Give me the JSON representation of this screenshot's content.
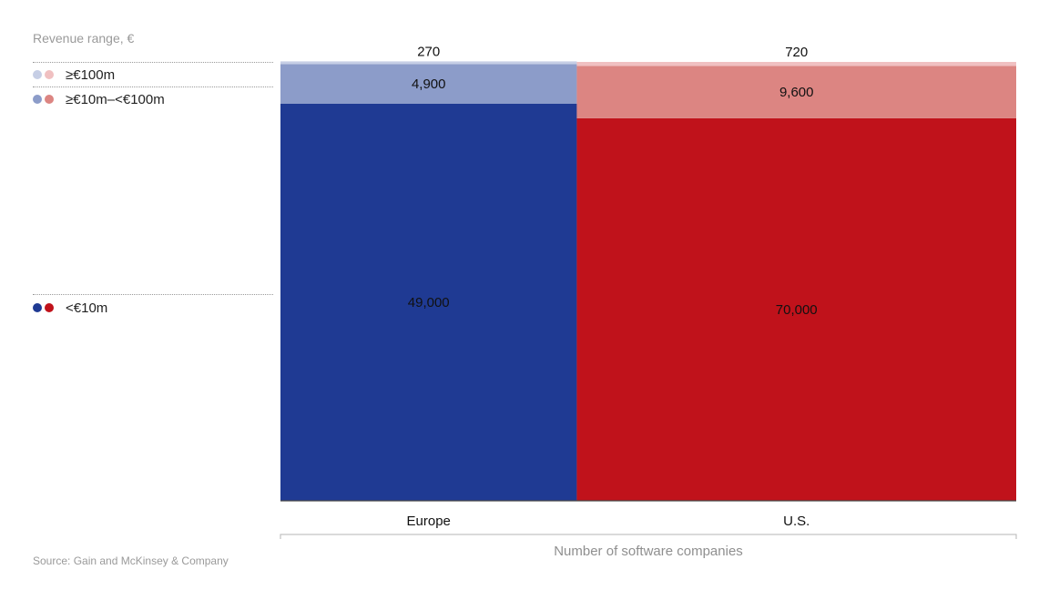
{
  "legend_title": "Revenue range, €",
  "source": "Source: Gain and McKinsey & Company",
  "colors": {
    "europe": [
      "#1f3a93",
      "#8c9cc9",
      "#c6cee5"
    ],
    "us": [
      "#c0121b",
      "#dc8582",
      "#f0c0c1"
    ]
  },
  "chart_data": {
    "type": "bar",
    "stacked": true,
    "categories": [
      "Europe",
      "U.S."
    ],
    "series": [
      {
        "name": "<€10m",
        "values": [
          49000,
          70000
        ]
      },
      {
        "name": "≥€10m–<€100m",
        "values": [
          4900,
          9600
        ]
      },
      {
        "name": "≥€100m",
        "values": [
          270,
          720
        ]
      }
    ],
    "data_labels": {
      "<€10m": [
        "49,000",
        "70,000"
      ],
      "≥€10m–<€100m": [
        "4,900",
        "9,600"
      ],
      "≥€100m": [
        "270",
        "720"
      ]
    },
    "xlabel": "Number of software companies",
    "ylabel": "",
    "legend_position": "left"
  }
}
